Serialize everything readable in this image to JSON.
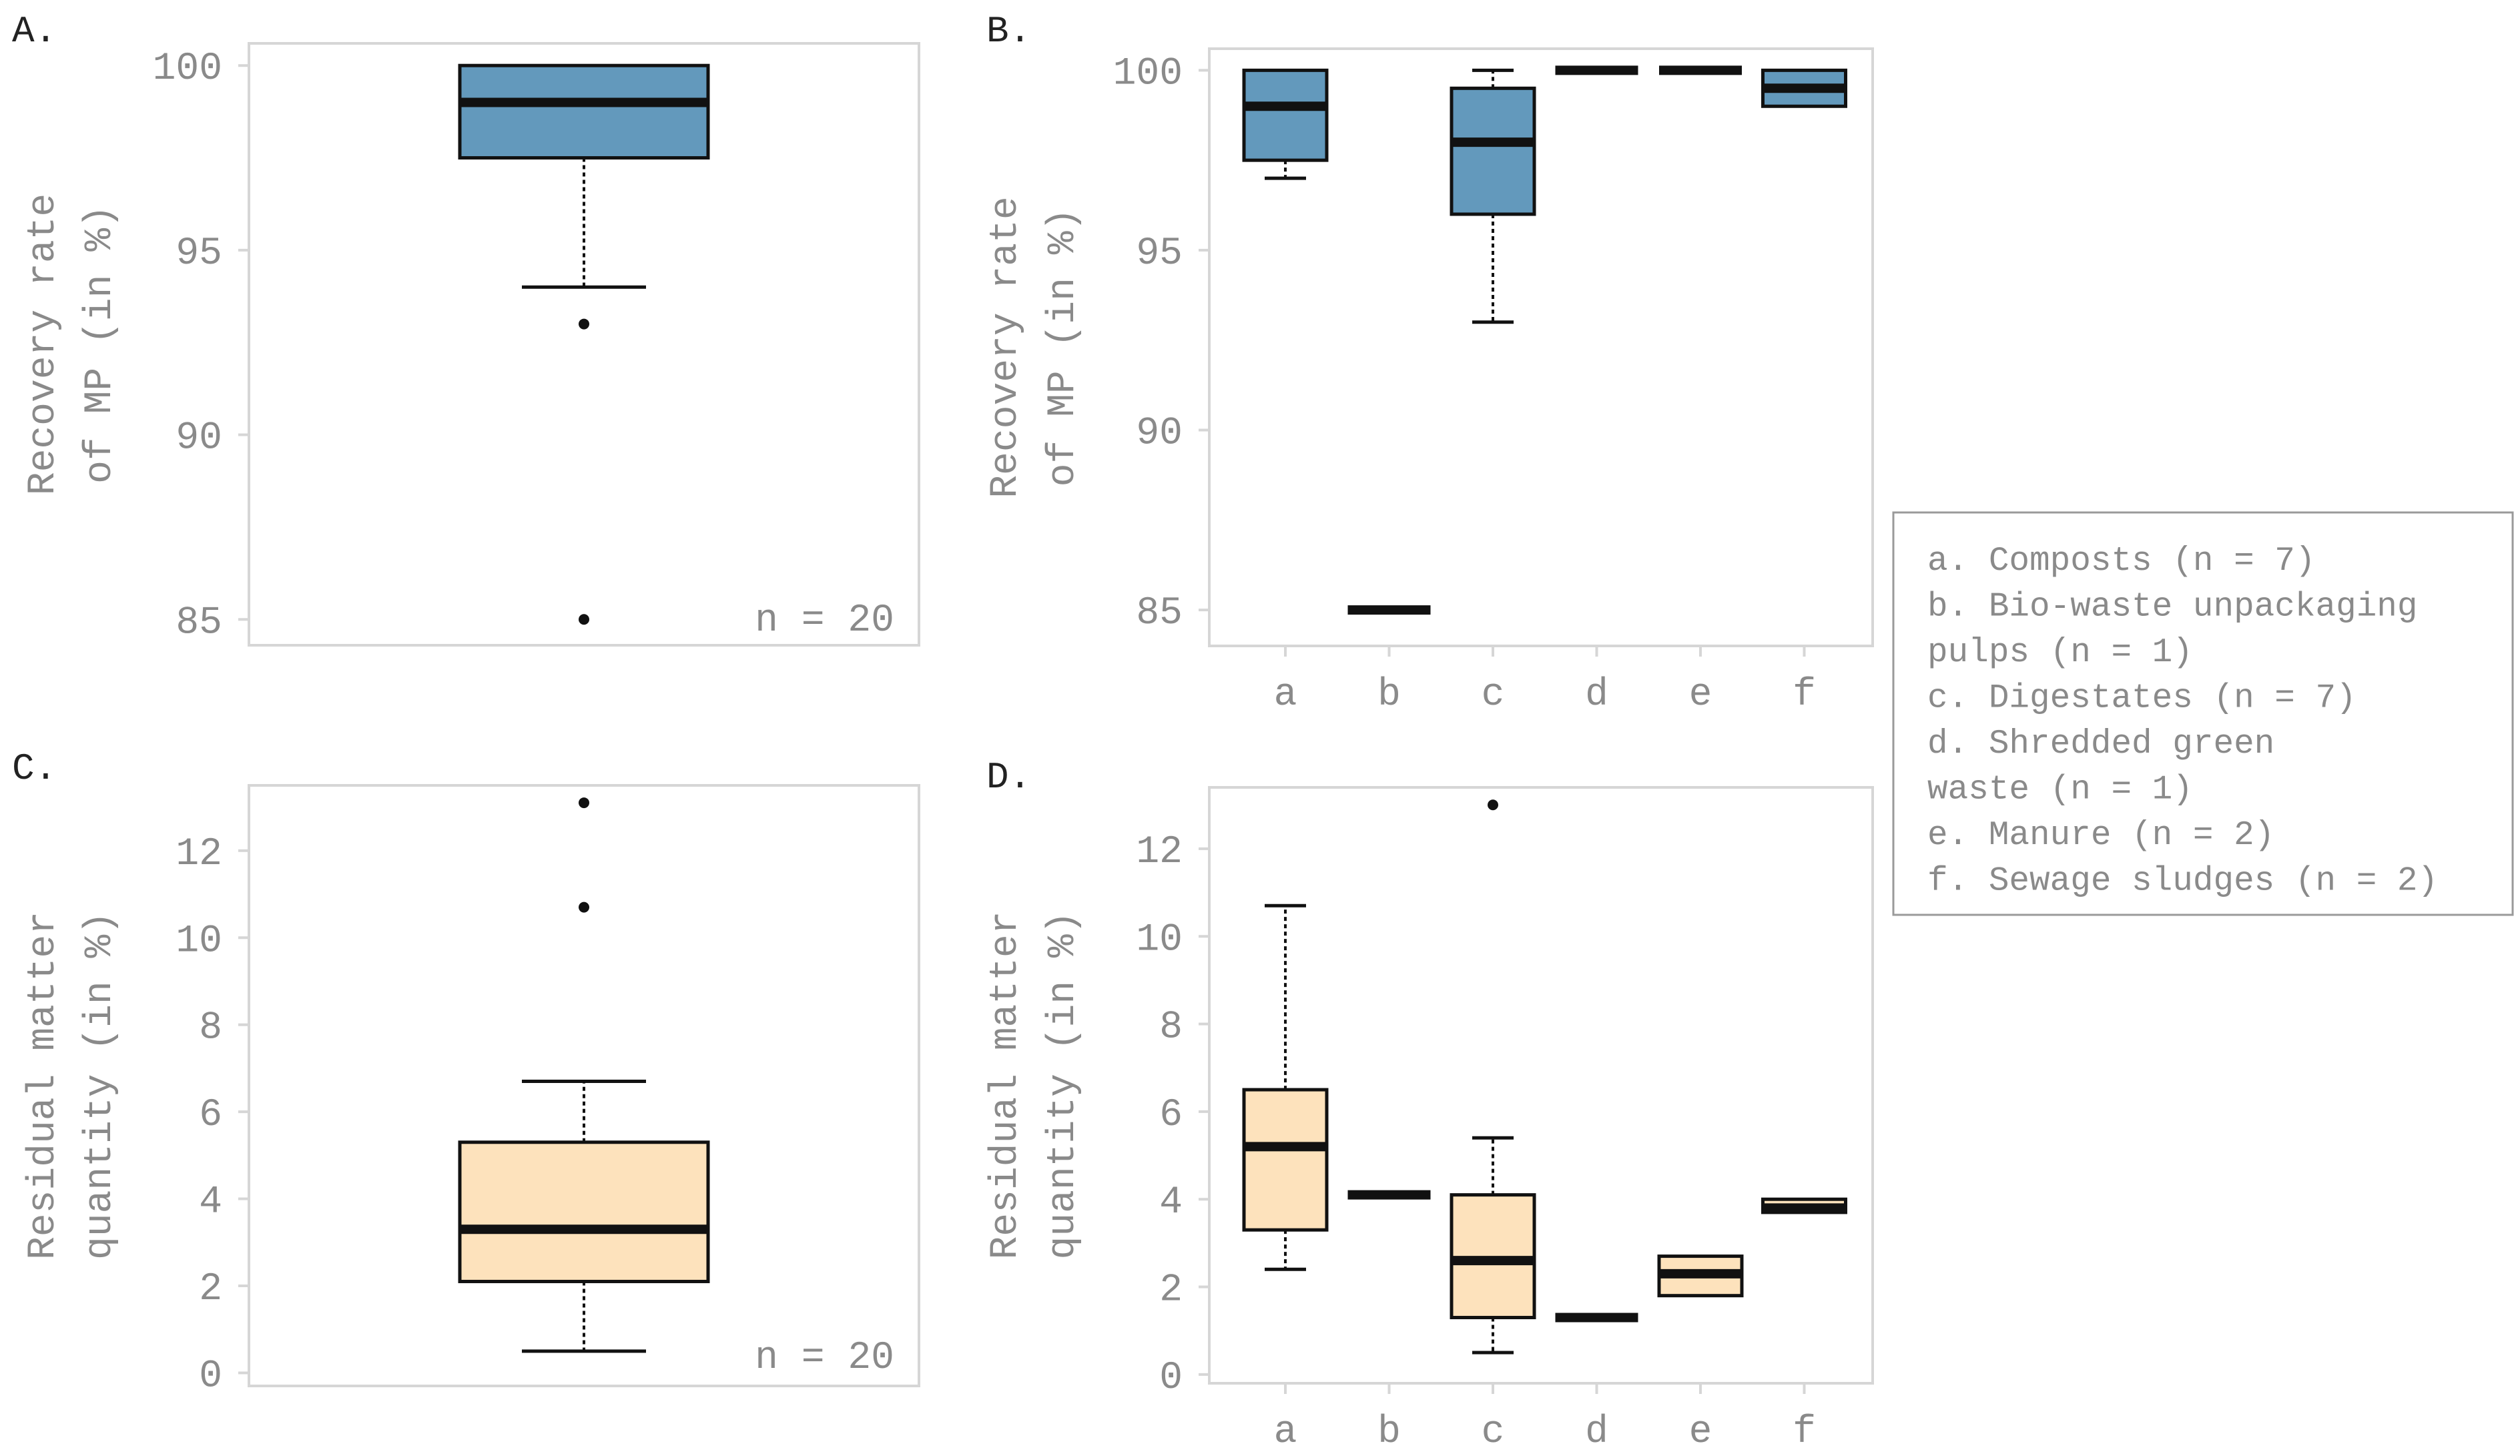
{
  "figure": {
    "colors": {
      "recovery_fill": "#6399bc",
      "residual_fill": "#fde2bc",
      "frame": "#d6d6d6",
      "tick_text": "#8a8a8a",
      "box_stroke": "#111111"
    }
  },
  "legend": {
    "items": [
      {
        "key": "a",
        "lines": [
          "a. Composts (n = 7)"
        ]
      },
      {
        "key": "b",
        "lines": [
          "b. Bio-waste unpackaging",
          "   pulps (n = 1)"
        ]
      },
      {
        "key": "c",
        "lines": [
          "c. Digestates (n = 7)"
        ]
      },
      {
        "key": "d",
        "lines": [
          "d. Shredded green",
          "   waste (n = 1)"
        ]
      },
      {
        "key": "e",
        "lines": [
          "e. Manure (n = 2)"
        ]
      },
      {
        "key": "f",
        "lines": [
          "f. Sewage sludges (n = 2)"
        ]
      }
    ]
  },
  "chart_data": [
    {
      "panel": "A.",
      "type": "box",
      "ylabel": [
        "Recovery rate",
        "of MP (in %)"
      ],
      "yticks": [
        85,
        90,
        95,
        100
      ],
      "ylim": [
        84.3,
        100.6
      ],
      "annotation": "n = 20",
      "fill": "recovery",
      "categories": [
        ""
      ],
      "boxes": [
        {
          "q1": 97.5,
          "median": 99.0,
          "q3": 100.0,
          "wlo": 94.0,
          "whi": 100.0,
          "outliers": [
            93.0,
            85.0
          ]
        }
      ]
    },
    {
      "panel": "B.",
      "type": "box",
      "ylabel": [
        "Recovery rate",
        "of MP (in %)"
      ],
      "yticks": [
        85,
        90,
        95,
        100
      ],
      "ylim": [
        84.0,
        100.6
      ],
      "fill": "recovery",
      "categories": [
        "a",
        "b",
        "c",
        "d",
        "e",
        "f"
      ],
      "boxes": [
        {
          "q1": 97.5,
          "median": 99.0,
          "q3": 100.0,
          "wlo": 97.0,
          "whi": 100.0,
          "outliers": []
        },
        {
          "q1": 85.0,
          "median": 85.0,
          "q3": 85.0,
          "wlo": 85.0,
          "whi": 85.0,
          "outliers": []
        },
        {
          "q1": 96.0,
          "median": 98.0,
          "q3": 99.5,
          "wlo": 93.0,
          "whi": 100.0,
          "outliers": []
        },
        {
          "q1": 100.0,
          "median": 100.0,
          "q3": 100.0,
          "wlo": 100.0,
          "whi": 100.0,
          "outliers": []
        },
        {
          "q1": 100.0,
          "median": 100.0,
          "q3": 100.0,
          "wlo": 100.0,
          "whi": 100.0,
          "outliers": []
        },
        {
          "q1": 99.0,
          "median": 99.5,
          "q3": 100.0,
          "wlo": 99.0,
          "whi": 100.0,
          "outliers": []
        }
      ]
    },
    {
      "panel": "C.",
      "type": "box",
      "ylabel": [
        "Residual matter",
        "quantity (in %)"
      ],
      "yticks": [
        0,
        2,
        4,
        6,
        8,
        10,
        12
      ],
      "ylim": [
        -0.3,
        13.5
      ],
      "annotation": "n = 20",
      "fill": "residual",
      "categories": [
        ""
      ],
      "boxes": [
        {
          "q1": 2.1,
          "median": 3.3,
          "q3": 5.3,
          "wlo": 0.5,
          "whi": 6.7,
          "outliers": [
            10.7,
            13.1
          ]
        }
      ]
    },
    {
      "panel": "D.",
      "type": "box",
      "ylabel": [
        "Residual matter",
        "quantity (in %)"
      ],
      "yticks": [
        0,
        2,
        4,
        6,
        8,
        10,
        12
      ],
      "ylim": [
        -0.2,
        13.4
      ],
      "fill": "residual",
      "categories": [
        "a",
        "b",
        "c",
        "d",
        "e",
        "f"
      ],
      "boxes": [
        {
          "q1": 3.3,
          "median": 5.2,
          "q3": 6.5,
          "wlo": 2.4,
          "whi": 10.7,
          "outliers": []
        },
        {
          "q1": 4.1,
          "median": 4.1,
          "q3": 4.1,
          "wlo": 4.1,
          "whi": 4.1,
          "outliers": []
        },
        {
          "q1": 1.3,
          "median": 2.6,
          "q3": 4.1,
          "wlo": 0.5,
          "whi": 5.4,
          "outliers": [
            13.0
          ]
        },
        {
          "q1": 1.3,
          "median": 1.3,
          "q3": 1.3,
          "wlo": 1.3,
          "whi": 1.3,
          "outliers": []
        },
        {
          "q1": 1.8,
          "median": 2.3,
          "q3": 2.7,
          "wlo": 1.8,
          "whi": 2.7,
          "outliers": []
        },
        {
          "q1": 3.7,
          "median": 3.8,
          "q3": 4.0,
          "wlo": 3.7,
          "whi": 4.0,
          "outliers": []
        }
      ]
    }
  ]
}
